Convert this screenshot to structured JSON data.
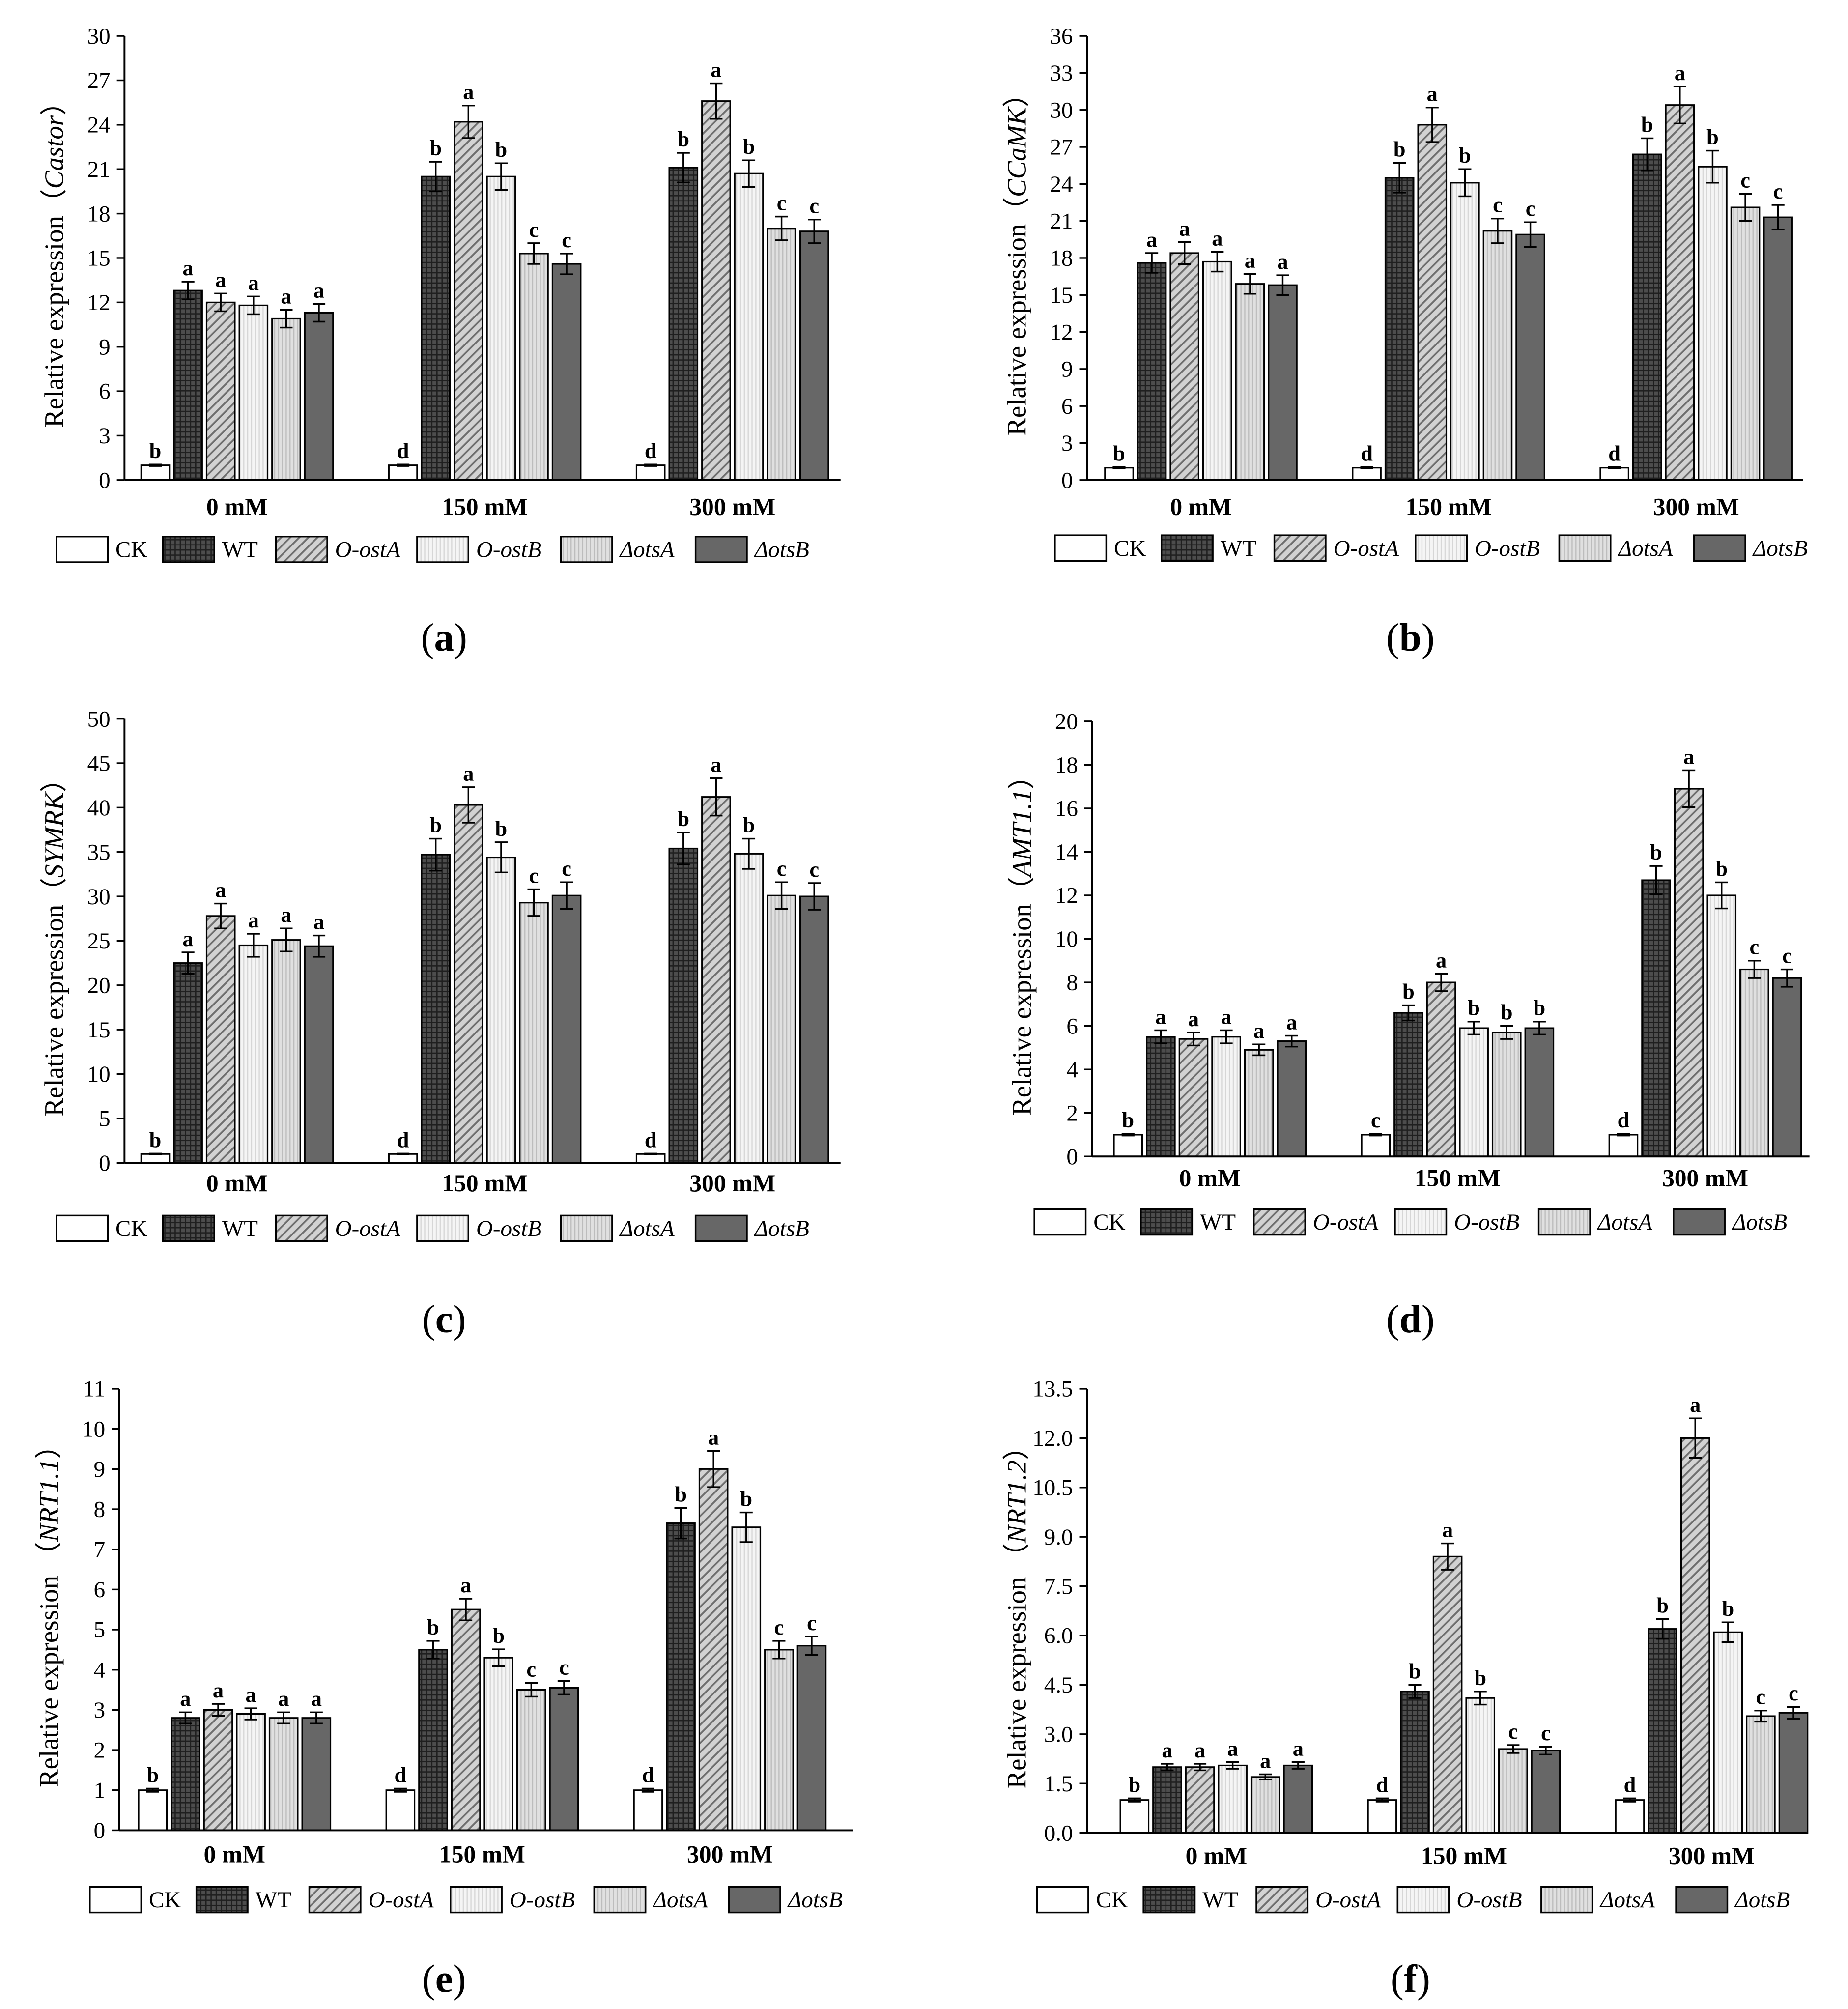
{
  "series_styles": [
    {
      "fill": "#ffffff",
      "italic": false
    },
    {
      "fill": "#4d4d4d",
      "hatch": "#1f1f1f",
      "italic": false
    },
    {
      "fill": "#d2d2d2",
      "hatch": "#6e6e6e",
      "italic": true
    },
    {
      "fill": "#f5f5f5",
      "hatch": "#d6d6d6",
      "italic": true
    },
    {
      "fill": "#e0e0e0",
      "hatch": "#bcbcbc",
      "italic": true
    },
    {
      "fill": "#676767",
      "italic": true
    }
  ],
  "chart_data": [
    {
      "type": "bar",
      "panel_label": {
        "open": "(",
        "letter": "a",
        "close": ")"
      },
      "ylabel": {
        "prefix": "Relative expression（",
        "gene": "Castor",
        "suffix": "）"
      },
      "ylim": [
        0,
        30
      ],
      "yticks": [
        "0",
        "3",
        "6",
        "9",
        "12",
        "15",
        "18",
        "21",
        "24",
        "27",
        "30"
      ],
      "categories": [
        "0 mM",
        "150 mM",
        "300 mM"
      ],
      "series": [
        {
          "name": "CK",
          "values": [
            1,
            1,
            1
          ],
          "errors": [
            0.05,
            0.05,
            0.05
          ],
          "letters": [
            "b",
            "d",
            "d"
          ]
        },
        {
          "name": "WT",
          "values": [
            12.8,
            20.5,
            21.1
          ],
          "errors": [
            0.6,
            1.0,
            1.0
          ],
          "letters": [
            "a",
            "b",
            "b"
          ]
        },
        {
          "name": "O-ostA",
          "values": [
            12.0,
            24.2,
            25.6
          ],
          "errors": [
            0.6,
            1.1,
            1.2
          ],
          "letters": [
            "a",
            "a",
            "a"
          ]
        },
        {
          "name": "O-ostB",
          "values": [
            11.8,
            20.5,
            20.7
          ],
          "errors": [
            0.6,
            0.9,
            0.9
          ],
          "letters": [
            "a",
            "b",
            "b"
          ]
        },
        {
          "name": "ΔotsA",
          "values": [
            10.9,
            15.3,
            17.0
          ],
          "errors": [
            0.6,
            0.7,
            0.8
          ],
          "letters": [
            "a",
            "c",
            "c"
          ]
        },
        {
          "name": "ΔotsB",
          "values": [
            11.3,
            14.6,
            16.8
          ],
          "errors": [
            0.6,
            0.7,
            0.8
          ],
          "letters": [
            "a",
            "c",
            "c"
          ]
        }
      ]
    },
    {
      "type": "bar",
      "panel_label": {
        "open": "(",
        "letter": "b",
        "close": ")"
      },
      "ylabel": {
        "prefix": "Relative expression（",
        "gene": "CCaMK",
        "suffix": "）"
      },
      "ylim": [
        0,
        36
      ],
      "yticks": [
        "0",
        "3",
        "6",
        "9",
        "12",
        "15",
        "18",
        "21",
        "24",
        "27",
        "30",
        "33",
        "36"
      ],
      "categories": [
        "0 mM",
        "150 mM",
        "300 mM"
      ],
      "series": [
        {
          "name": "CK",
          "values": [
            1,
            1,
            1
          ],
          "errors": [
            0.05,
            0.05,
            0.05
          ],
          "letters": [
            "b",
            "d",
            "d"
          ]
        },
        {
          "name": "WT",
          "values": [
            17.6,
            24.5,
            26.4
          ],
          "errors": [
            0.8,
            1.2,
            1.3
          ],
          "letters": [
            "a",
            "b",
            "b"
          ]
        },
        {
          "name": "O-ostA",
          "values": [
            18.4,
            28.8,
            30.4
          ],
          "errors": [
            0.9,
            1.4,
            1.5
          ],
          "letters": [
            "a",
            "a",
            "a"
          ]
        },
        {
          "name": "O-ostB",
          "values": [
            17.7,
            24.1,
            25.4
          ],
          "errors": [
            0.8,
            1.1,
            1.3
          ],
          "letters": [
            "a",
            "b",
            "b"
          ]
        },
        {
          "name": "ΔotsA",
          "values": [
            15.9,
            20.2,
            22.1
          ],
          "errors": [
            0.8,
            1.0,
            1.1
          ],
          "letters": [
            "a",
            "c",
            "c"
          ]
        },
        {
          "name": "ΔotsB",
          "values": [
            15.8,
            19.9,
            21.3
          ],
          "errors": [
            0.8,
            1.0,
            1.0
          ],
          "letters": [
            "a",
            "c",
            "c"
          ]
        }
      ]
    },
    {
      "type": "bar",
      "panel_label": {
        "open": "(",
        "letter": "c",
        "close": ")"
      },
      "ylabel": {
        "prefix": "Relative expression（",
        "gene": "SYMRK",
        "suffix": "）"
      },
      "ylim": [
        0,
        50
      ],
      "yticks": [
        "0",
        "5",
        "10",
        "15",
        "20",
        "25",
        "30",
        "35",
        "40",
        "45",
        "50"
      ],
      "categories": [
        "0 mM",
        "150 mM",
        "300 mM"
      ],
      "series": [
        {
          "name": "CK",
          "values": [
            1,
            1,
            1
          ],
          "errors": [
            0.05,
            0.05,
            0.05
          ],
          "letters": [
            "b",
            "d",
            "d"
          ]
        },
        {
          "name": "WT",
          "values": [
            22.5,
            34.7,
            35.4
          ],
          "errors": [
            1.2,
            1.8,
            1.8
          ],
          "letters": [
            "a",
            "b",
            "b"
          ]
        },
        {
          "name": "O-ostA",
          "values": [
            27.8,
            40.3,
            41.2
          ],
          "errors": [
            1.4,
            2.0,
            2.1
          ],
          "letters": [
            "a",
            "a",
            "a"
          ]
        },
        {
          "name": "O-ostB",
          "values": [
            24.5,
            34.4,
            34.8
          ],
          "errors": [
            1.3,
            1.7,
            1.7
          ],
          "letters": [
            "a",
            "b",
            "b"
          ]
        },
        {
          "name": "ΔotsA",
          "values": [
            25.1,
            29.3,
            30.1
          ],
          "errors": [
            1.3,
            1.5,
            1.5
          ],
          "letters": [
            "a",
            "c",
            "c"
          ]
        },
        {
          "name": "ΔotsB",
          "values": [
            24.4,
            30.1,
            30.0
          ],
          "errors": [
            1.2,
            1.5,
            1.5
          ],
          "letters": [
            "a",
            "c",
            "c"
          ]
        }
      ]
    },
    {
      "type": "bar",
      "panel_label": {
        "open": "(",
        "letter": "d",
        "close": ")"
      },
      "ylabel": {
        "prefix": "Relative expression（",
        "gene": "AMT1.1",
        "suffix": "）"
      },
      "ylim": [
        0,
        20
      ],
      "yticks": [
        "0",
        "2",
        "4",
        "6",
        "8",
        "10",
        "12",
        "14",
        "16",
        "18",
        "20"
      ],
      "categories": [
        "0 mM",
        "150 mM",
        "300 mM"
      ],
      "series": [
        {
          "name": "CK",
          "values": [
            1,
            1,
            1
          ],
          "errors": [
            0.04,
            0.04,
            0.04
          ],
          "letters": [
            "b",
            "c",
            "d"
          ]
        },
        {
          "name": "WT",
          "values": [
            5.5,
            6.6,
            12.7
          ],
          "errors": [
            0.3,
            0.35,
            0.65
          ],
          "letters": [
            "a",
            "b",
            "b"
          ]
        },
        {
          "name": "O-ostA",
          "values": [
            5.4,
            8.0,
            16.9
          ],
          "errors": [
            0.3,
            0.4,
            0.85
          ],
          "letters": [
            "a",
            "a",
            "a"
          ]
        },
        {
          "name": "O-ostB",
          "values": [
            5.5,
            5.9,
            12.0
          ],
          "errors": [
            0.3,
            0.3,
            0.6
          ],
          "letters": [
            "a",
            "b",
            "b"
          ]
        },
        {
          "name": "ΔotsA",
          "values": [
            4.9,
            5.7,
            8.6
          ],
          "errors": [
            0.25,
            0.3,
            0.4
          ],
          "letters": [
            "a",
            "b",
            "c"
          ]
        },
        {
          "name": "ΔotsB",
          "values": [
            5.3,
            5.9,
            8.2
          ],
          "errors": [
            0.25,
            0.3,
            0.4
          ],
          "letters": [
            "a",
            "b",
            "c"
          ]
        }
      ]
    },
    {
      "type": "bar",
      "panel_label": {
        "open": "(",
        "letter": "e",
        "close": ")"
      },
      "ylabel": {
        "prefix": "Relative expression （",
        "gene": "NRT1.1",
        "suffix": "）"
      },
      "ylim": [
        0,
        11
      ],
      "yticks": [
        "0",
        "1",
        "2",
        "3",
        "4",
        "5",
        "6",
        "7",
        "8",
        "9",
        "10",
        "11"
      ],
      "categories": [
        "0 mM",
        "150 mM",
        "300 mM"
      ],
      "series": [
        {
          "name": "CK",
          "values": [
            1,
            1,
            1
          ],
          "errors": [
            0.04,
            0.04,
            0.04
          ],
          "letters": [
            "b",
            "d",
            "d"
          ]
        },
        {
          "name": "WT",
          "values": [
            2.8,
            4.5,
            7.65
          ],
          "errors": [
            0.14,
            0.22,
            0.38
          ],
          "letters": [
            "a",
            "b",
            "b"
          ]
        },
        {
          "name": "O-ostA",
          "values": [
            3.0,
            5.5,
            9.0
          ],
          "errors": [
            0.15,
            0.27,
            0.45
          ],
          "letters": [
            "a",
            "a",
            "a"
          ]
        },
        {
          "name": "O-ostB",
          "values": [
            2.9,
            4.3,
            7.55
          ],
          "errors": [
            0.14,
            0.21,
            0.37
          ],
          "letters": [
            "a",
            "b",
            "b"
          ]
        },
        {
          "name": "ΔotsA",
          "values": [
            2.8,
            3.5,
            4.5
          ],
          "errors": [
            0.14,
            0.17,
            0.22
          ],
          "letters": [
            "a",
            "c",
            "c"
          ]
        },
        {
          "name": "ΔotsB",
          "values": [
            2.8,
            3.55,
            4.6
          ],
          "errors": [
            0.14,
            0.17,
            0.23
          ],
          "letters": [
            "a",
            "c",
            "c"
          ]
        }
      ]
    },
    {
      "type": "bar",
      "panel_label": {
        "open": "(",
        "letter": "f",
        "close": ")"
      },
      "ylabel": {
        "prefix": "Relative expression （",
        "gene": "NRT1.2",
        "suffix": "）"
      },
      "ylim": [
        0,
        13.5
      ],
      "yticks": [
        "0.0",
        "1.5",
        "3.0",
        "4.5",
        "6.0",
        "7.5",
        "9.0",
        "10.5",
        "12.0",
        "13.5"
      ],
      "categories": [
        "0 mM",
        "150 mM",
        "300 mM"
      ],
      "series": [
        {
          "name": "CK",
          "values": [
            1,
            1,
            1
          ],
          "errors": [
            0.05,
            0.05,
            0.05
          ],
          "letters": [
            "b",
            "d",
            "d"
          ]
        },
        {
          "name": "WT",
          "values": [
            2.0,
            4.3,
            6.2
          ],
          "errors": [
            0.1,
            0.2,
            0.3
          ],
          "letters": [
            "a",
            "b",
            "b"
          ]
        },
        {
          "name": "O-ostA",
          "values": [
            2.0,
            8.4,
            12.0
          ],
          "errors": [
            0.1,
            0.4,
            0.6
          ],
          "letters": [
            "a",
            "a",
            "a"
          ]
        },
        {
          "name": "O-ostB",
          "values": [
            2.05,
            4.1,
            6.1
          ],
          "errors": [
            0.1,
            0.2,
            0.3
          ],
          "letters": [
            "a",
            "b",
            "b"
          ]
        },
        {
          "name": "ΔotsA",
          "values": [
            1.7,
            2.55,
            3.55
          ],
          "errors": [
            0.08,
            0.12,
            0.17
          ],
          "letters": [
            "a",
            "c",
            "c"
          ]
        },
        {
          "name": "ΔotsB",
          "values": [
            2.05,
            2.5,
            3.65
          ],
          "errors": [
            0.1,
            0.12,
            0.18
          ],
          "letters": [
            "a",
            "c",
            "c"
          ]
        }
      ]
    }
  ]
}
